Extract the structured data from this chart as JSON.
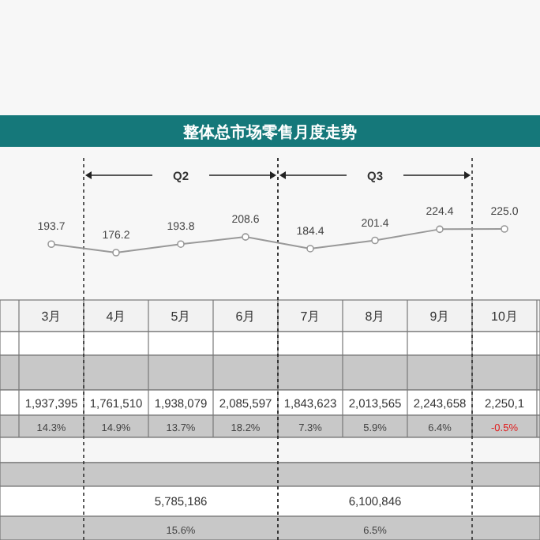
{
  "chart_data": {
    "type": "line",
    "title": "整体总市场零售月度走势",
    "categories": [
      "3月",
      "4月",
      "5月",
      "6月",
      "7月",
      "8月",
      "9月",
      "10月"
    ],
    "series": [
      {
        "color": "#999999",
        "values": [
          193.7,
          176.2,
          193.8,
          208.6,
          184.4,
          201.4,
          224.4,
          225.0
        ],
        "value_labels": [
          "193.7",
          "176.2",
          "193.8",
          "208.6",
          "184.4",
          "201.4",
          "224.4",
          "225.0"
        ]
      }
    ],
    "marker": "circle",
    "annotations": [
      "1,937,395",
      "1,761,510",
      "1,938,079",
      "2,085,597",
      "1,843,623",
      "2,013,565",
      "2,243,658",
      "2,250,1",
      "14.3%",
      "14.9%",
      "13.7%",
      "18.2%",
      "7.3%",
      "5.9%",
      "6.4%",
      "-0.5%",
      "Q2",
      "5,785,186",
      "15.6%",
      "Q3",
      "6,100,846",
      "6.5%"
    ]
  }
}
